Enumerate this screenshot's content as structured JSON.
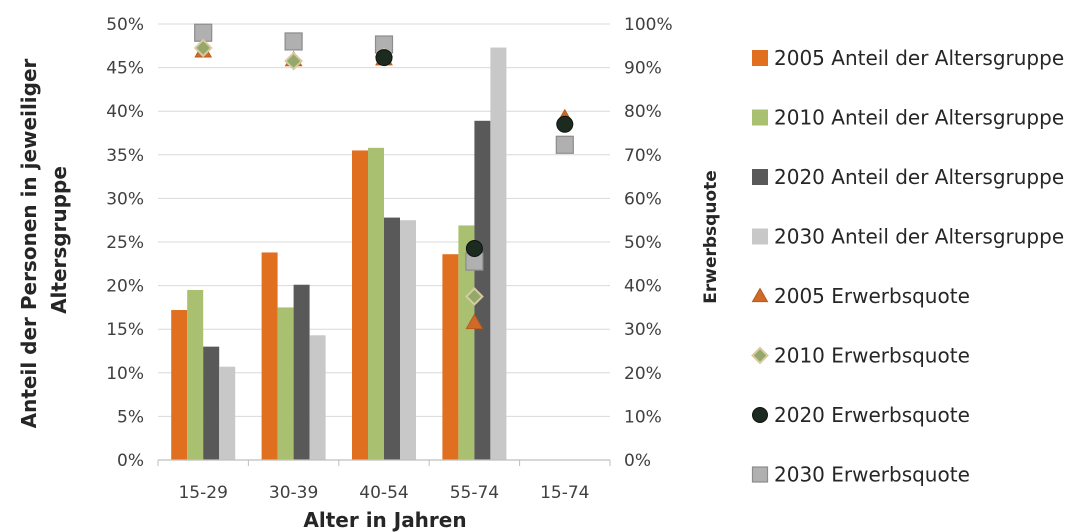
{
  "chart_data": {
    "type": "bar",
    "title": "",
    "categories": [
      "15-29",
      "30-39",
      "40-54",
      "55-74",
      "15-74"
    ],
    "xlabel": "Alter in Jahren",
    "ylabel": "Anteil der Personen in jeweiliger Altersgruppe",
    "y2label": "Erwerbsquote",
    "ylim": [
      0,
      50
    ],
    "y2lim": [
      0,
      100
    ],
    "yticks": [
      "0%",
      "5%",
      "10%",
      "15%",
      "20%",
      "25%",
      "30%",
      "35%",
      "40%",
      "45%",
      "50%"
    ],
    "y2ticks": [
      "0%",
      "10%",
      "20%",
      "30%",
      "40%",
      "50%",
      "60%",
      "70%",
      "80%",
      "90%",
      "100%"
    ],
    "grid": "horizontal",
    "legend_position": "right",
    "bar_series": [
      {
        "name": "2005 Anteil der Altersgruppe",
        "color": "#e07020",
        "values": [
          17.2,
          23.8,
          35.5,
          23.6,
          null
        ]
      },
      {
        "name": "2010 Anteil der Altersgruppe",
        "color": "#a8c070",
        "values": [
          19.5,
          17.5,
          35.8,
          26.9,
          null
        ]
      },
      {
        "name": "2020 Anteil der Altersgruppe",
        "color": "#595959",
        "values": [
          13.0,
          20.1,
          27.8,
          38.9,
          null
        ]
      },
      {
        "name": "2030 Anteil der Altersgruppe",
        "color": "#c8c8c8",
        "values": [
          10.7,
          14.3,
          27.5,
          47.3,
          null
        ]
      }
    ],
    "marker_series": [
      {
        "name": "2005 Erwerbsquote",
        "marker": "triangle",
        "color": "#d06a28",
        "values": [
          93.8,
          91.8,
          92.0,
          31.5,
          78.5
        ]
      },
      {
        "name": "2010 Erwerbsquote",
        "marker": "diamond",
        "color": "#93a86a",
        "values": [
          94.5,
          91.5,
          92.5,
          37.5,
          null
        ]
      },
      {
        "name": "2020 Erwerbsquote",
        "marker": "circle",
        "color": "#1c2a20",
        "values": [
          null,
          null,
          92.3,
          48.5,
          77.0
        ]
      },
      {
        "name": "2030 Erwerbsquote",
        "marker": "square",
        "color": "#b0b0b0",
        "values": [
          98.0,
          96.0,
          95.3,
          45.5,
          72.3
        ]
      }
    ]
  }
}
